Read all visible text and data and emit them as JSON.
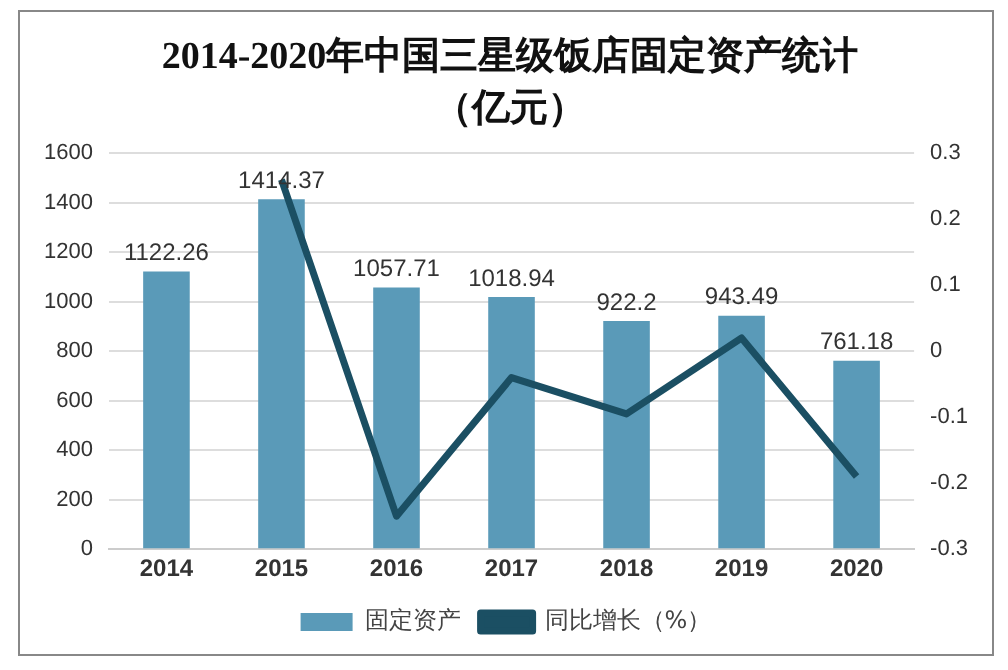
{
  "chart_data": {
    "type": "bar",
    "title": "2014-2020年中国三星级饭店固定资产统计（亿元）",
    "categories": [
      "2014",
      "2015",
      "2016",
      "2017",
      "2018",
      "2019",
      "2020"
    ],
    "series": [
      {
        "name": "固定资产",
        "color": "#5a9ab8",
        "values": [
          1122.26,
          1414.37,
          1057.71,
          1018.94,
          922.2,
          943.49,
          761.18
        ],
        "value_labels": [
          "1122.26",
          "1414.37",
          "1057.71",
          "1018.94",
          "922.2",
          "943.49",
          "761.18"
        ]
      },
      {
        "name": "同比增长（%）",
        "type": "line",
        "axis": "y2",
        "color": "#1b4f63",
        "values": [
          null,
          0.26,
          -0.25,
          -0.04,
          -0.095,
          0.02,
          -0.19
        ]
      }
    ],
    "ylim": [
      0,
      1600
    ],
    "yticks": [
      0,
      200,
      400,
      600,
      800,
      1000,
      1200,
      1400,
      1600
    ],
    "y2lim": [
      -0.3,
      0.3
    ],
    "y2ticks": [
      -0.3,
      -0.2,
      -0.1,
      0,
      0.1,
      0.2,
      0.3
    ],
    "grid": "y",
    "legend": "bottom",
    "marker": "none"
  }
}
